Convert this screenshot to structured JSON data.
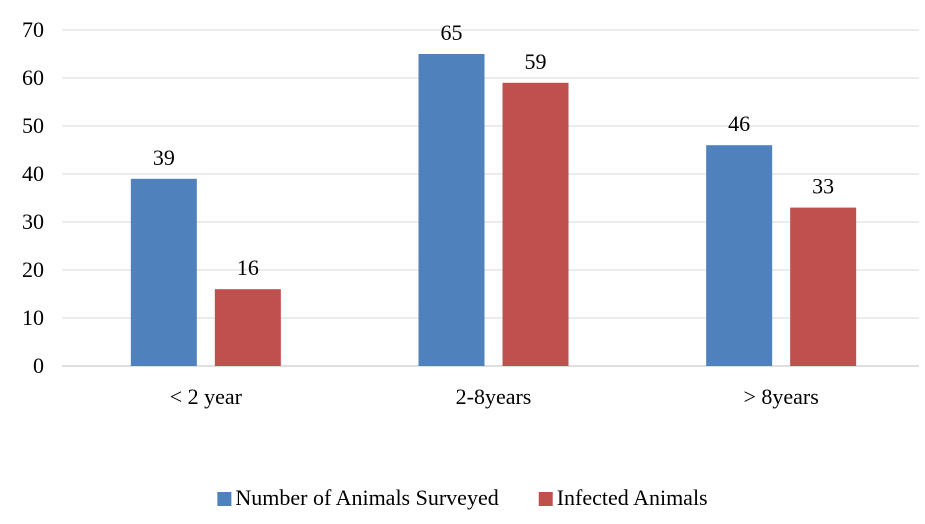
{
  "chart_data": {
    "type": "bar",
    "title": "",
    "xlabel": "",
    "ylabel": "",
    "categories": [
      "< 2 year",
      "2-8years",
      "> 8years"
    ],
    "series": [
      {
        "name": "Number of Animals Surveyed",
        "values": [
          39,
          65,
          46
        ],
        "color": "#4f81bd"
      },
      {
        "name": "Infected Animals",
        "values": [
          16,
          59,
          33
        ],
        "color": "#c0504d"
      }
    ],
    "ylim": [
      0,
      70
    ],
    "yticks": [
      0,
      10,
      20,
      30,
      40,
      50,
      60,
      70
    ],
    "grid": true,
    "gridColor": "#d9d9d9",
    "legend": "bottom-center",
    "dataLabels": true
  }
}
